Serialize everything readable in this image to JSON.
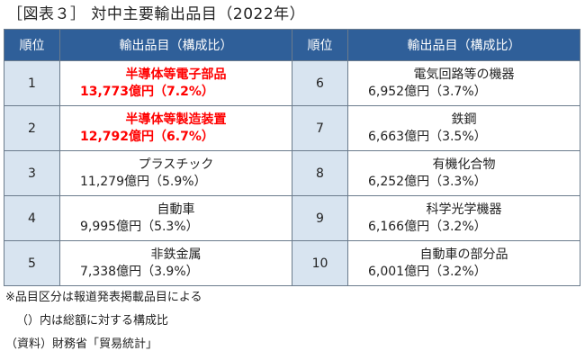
{
  "title": "［図表３］ 対中主要輸出品目（2022年）",
  "headers": {
    "rank_left": "順位",
    "item_left": "輸出品目（構成比）",
    "rank_right": "順位",
    "item_right": "輸出品目（構成比）"
  },
  "rows": [
    {
      "left": {
        "rank": "1",
        "name": "半導体等電子部品",
        "value": "13,773億円（7.2%）",
        "highlight": true
      },
      "right": {
        "rank": "6",
        "name": "電気回路等の機器",
        "value": "6,952億円（3.7%）",
        "highlight": false
      }
    },
    {
      "left": {
        "rank": "2",
        "name": "半導体等製造装置",
        "value": "12,792億円（6.7%）",
        "highlight": true
      },
      "right": {
        "rank": "7",
        "name": "鉄鋼",
        "value": "6,663億円（3.5%）",
        "highlight": false
      }
    },
    {
      "left": {
        "rank": "3",
        "name": "プラスチック",
        "value": "11,279億円（5.9%）",
        "highlight": false
      },
      "right": {
        "rank": "8",
        "name": "有機化合物",
        "value": "6,252億円（3.3%）",
        "highlight": false
      }
    },
    {
      "left": {
        "rank": "4",
        "name": "自動車",
        "value": "9,995億円（5.3%）",
        "highlight": false
      },
      "right": {
        "rank": "9",
        "name": "科学光学機器",
        "value": "6,166億円（3.2%）",
        "highlight": false
      }
    },
    {
      "left": {
        "rank": "5",
        "name": "非鉄金属",
        "value": "7,338億円（3.9%）",
        "highlight": false
      },
      "right": {
        "rank": "10",
        "name": "自動車の部分品",
        "value": "6,001億円（3.2%）",
        "highlight": false
      }
    }
  ],
  "notes": {
    "line1": "※品目区分は報道発表掲載品目による",
    "line2": "（）内は総額に対する構成比",
    "line3": "（資料）財務省「貿易統計」"
  },
  "colors": {
    "header_bg": "#2f5f99",
    "rank_bg": "#d8e4f0",
    "highlight_text": "#ff0000"
  }
}
